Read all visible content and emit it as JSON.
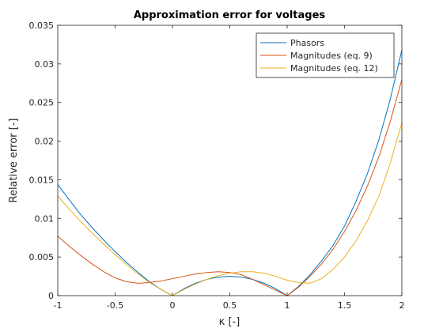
{
  "chart_data": {
    "type": "line",
    "title": "Approximation error for voltages",
    "xlabel": "κ [-]",
    "ylabel": "Relative error [-]",
    "xlim": [
      -1,
      2
    ],
    "ylim": [
      0,
      0.035
    ],
    "xticks": [
      -1,
      -0.5,
      0,
      0.5,
      1,
      1.5,
      2
    ],
    "xtick_labels": [
      "-1",
      "-0.5",
      "0",
      "0.5",
      "1",
      "1.5",
      "2"
    ],
    "yticks": [
      0,
      0.005,
      0.01,
      0.015,
      0.02,
      0.025,
      0.03,
      0.035
    ],
    "ytick_labels": [
      "0",
      "0.005",
      "0.01",
      "0.015",
      "0.02",
      "0.025",
      "0.03",
      "0.035"
    ],
    "grid": false,
    "legend_position": "top-right",
    "series": [
      {
        "name": "Phasors",
        "color": "#0072BD",
        "x": [
          -1,
          -0.9,
          -0.8,
          -0.7,
          -0.6,
          -0.5,
          -0.4,
          -0.3,
          -0.2,
          -0.1,
          0,
          0.1,
          0.2,
          0.3,
          0.4,
          0.5,
          0.6,
          0.7,
          0.8,
          0.9,
          1,
          1.1,
          1.2,
          1.3,
          1.4,
          1.5,
          1.6,
          1.7,
          1.8,
          1.9,
          2
        ],
        "y": [
          0.0144,
          0.0124,
          0.0105,
          0.0088,
          0.0072,
          0.0057,
          0.0043,
          0.003,
          0.0018,
          0.0008,
          0,
          0.0009,
          0.0016,
          0.0021,
          0.0024,
          0.0025,
          0.0024,
          0.0021,
          0.0016,
          0.0009,
          0,
          0.0012,
          0.0027,
          0.0045,
          0.0065,
          0.009,
          0.0122,
          0.0158,
          0.0202,
          0.0255,
          0.0318
        ]
      },
      {
        "name": "Magnitudes (eq. 9)",
        "color": "#D95319",
        "x": [
          -1,
          -0.9,
          -0.8,
          -0.7,
          -0.6,
          -0.5,
          -0.4,
          -0.3,
          -0.2,
          -0.1,
          0,
          0.1,
          0.2,
          0.3,
          0.4,
          0.5,
          0.6,
          0.7,
          0.8,
          0.9,
          1,
          1.1,
          1.2,
          1.3,
          1.4,
          1.5,
          1.6,
          1.7,
          1.8,
          1.9,
          2
        ],
        "y": [
          0.0077,
          0.0064,
          0.0052,
          0.0041,
          0.0031,
          0.0023,
          0.0018,
          0.0016,
          0.0017,
          0.0019,
          0.0022,
          0.0025,
          0.0028,
          0.003,
          0.0031,
          0.003,
          0.0027,
          0.0021,
          0.0014,
          0.0007,
          0,
          0.0011,
          0.0025,
          0.0041,
          0.006,
          0.0083,
          0.011,
          0.0142,
          0.018,
          0.0226,
          0.028
        ]
      },
      {
        "name": "Magnitudes (eq. 12)",
        "color": "#EDB120",
        "x": [
          -1,
          -0.9,
          -0.8,
          -0.7,
          -0.6,
          -0.5,
          -0.4,
          -0.3,
          -0.2,
          -0.1,
          0,
          0.1,
          0.2,
          0.3,
          0.4,
          0.5,
          0.6,
          0.7,
          0.8,
          0.9,
          1,
          1.1,
          1.2,
          1.3,
          1.4,
          1.5,
          1.6,
          1.7,
          1.8,
          1.9,
          2
        ],
        "y": [
          0.0129,
          0.0112,
          0.0096,
          0.0081,
          0.0067,
          0.0053,
          0.004,
          0.0028,
          0.0017,
          0.0008,
          0,
          0.0008,
          0.0015,
          0.0021,
          0.0026,
          0.0029,
          0.0031,
          0.0031,
          0.0029,
          0.0025,
          0.002,
          0.0017,
          0.0016,
          0.0022,
          0.0034,
          0.005,
          0.0071,
          0.0097,
          0.0129,
          0.0172,
          0.0224
        ]
      }
    ]
  }
}
